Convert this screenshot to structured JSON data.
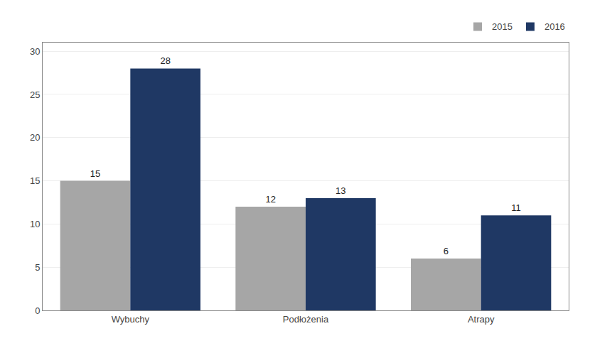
{
  "chart_data": {
    "type": "bar",
    "categories": [
      "Wybuchy",
      "Podłożenia",
      "Atrapy"
    ],
    "series": [
      {
        "name": "2015",
        "color": "#a6a6a6",
        "values": [
          15,
          12,
          6
        ]
      },
      {
        "name": "2016",
        "color": "#1f3864",
        "values": [
          28,
          13,
          11
        ]
      }
    ],
    "ylim": [
      0,
      31
    ],
    "yticks": [
      0,
      5,
      10,
      15,
      20,
      25,
      30
    ],
    "grid": true,
    "legend": "upper right",
    "data_labels": true
  }
}
